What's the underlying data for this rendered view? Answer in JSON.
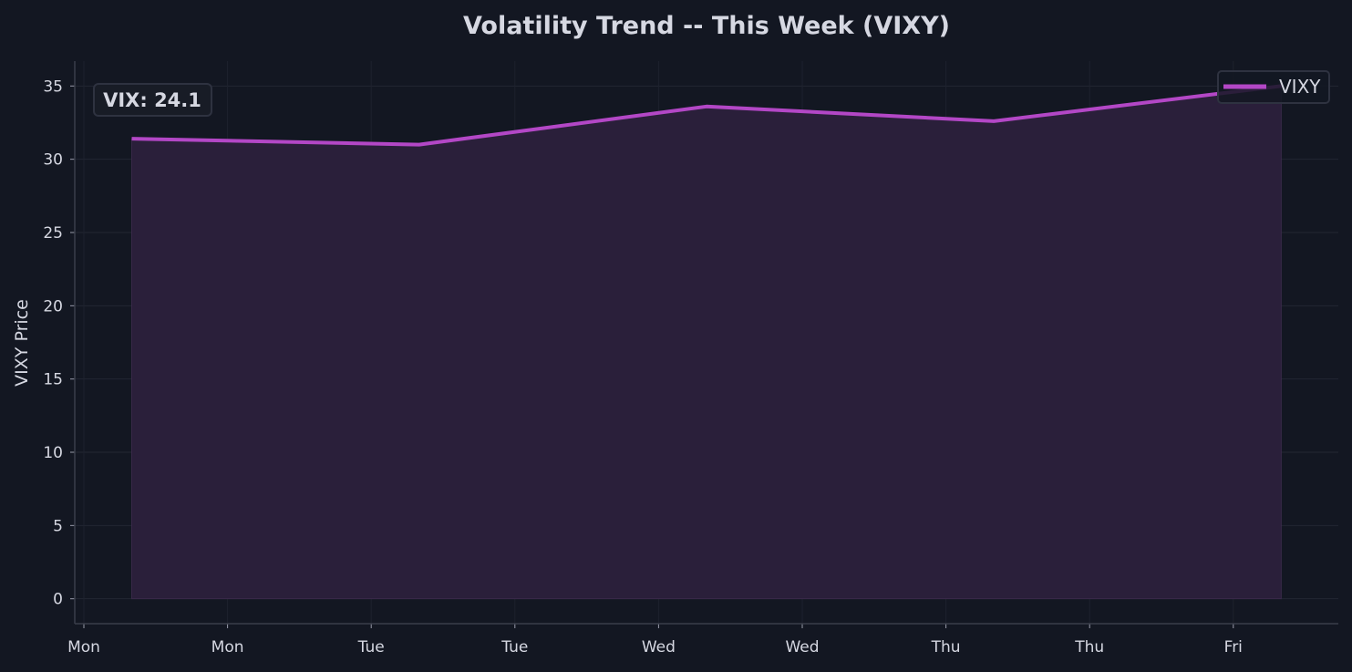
{
  "chart_data": {
    "type": "area",
    "title": "Volatility Trend -- This Week (VIXY)",
    "xlabel": "",
    "ylabel": "VIXY Price",
    "x_tick_labels": [
      "Mon",
      "Mon",
      "Tue",
      "Tue",
      "Wed",
      "Wed",
      "Thu",
      "Thu",
      "Fri"
    ],
    "y_ticks": [
      0,
      5,
      10,
      15,
      20,
      25,
      30,
      35
    ],
    "ylim": [
      -1.7,
      36.7
    ],
    "grid": true,
    "legend_position": "top-right",
    "annotation": "VIX: 24.1",
    "series": [
      {
        "name": "VIXY",
        "color": "#b347c6",
        "fill": "#2a1f3a",
        "x": [
          "Mon",
          "Tue",
          "Wed",
          "Thu",
          "Fri"
        ],
        "values": [
          31.4,
          31.0,
          33.6,
          32.6,
          35.0
        ]
      }
    ]
  },
  "colors": {
    "background": "#131722",
    "grid": "#232733",
    "text": "#d6d8e2"
  }
}
